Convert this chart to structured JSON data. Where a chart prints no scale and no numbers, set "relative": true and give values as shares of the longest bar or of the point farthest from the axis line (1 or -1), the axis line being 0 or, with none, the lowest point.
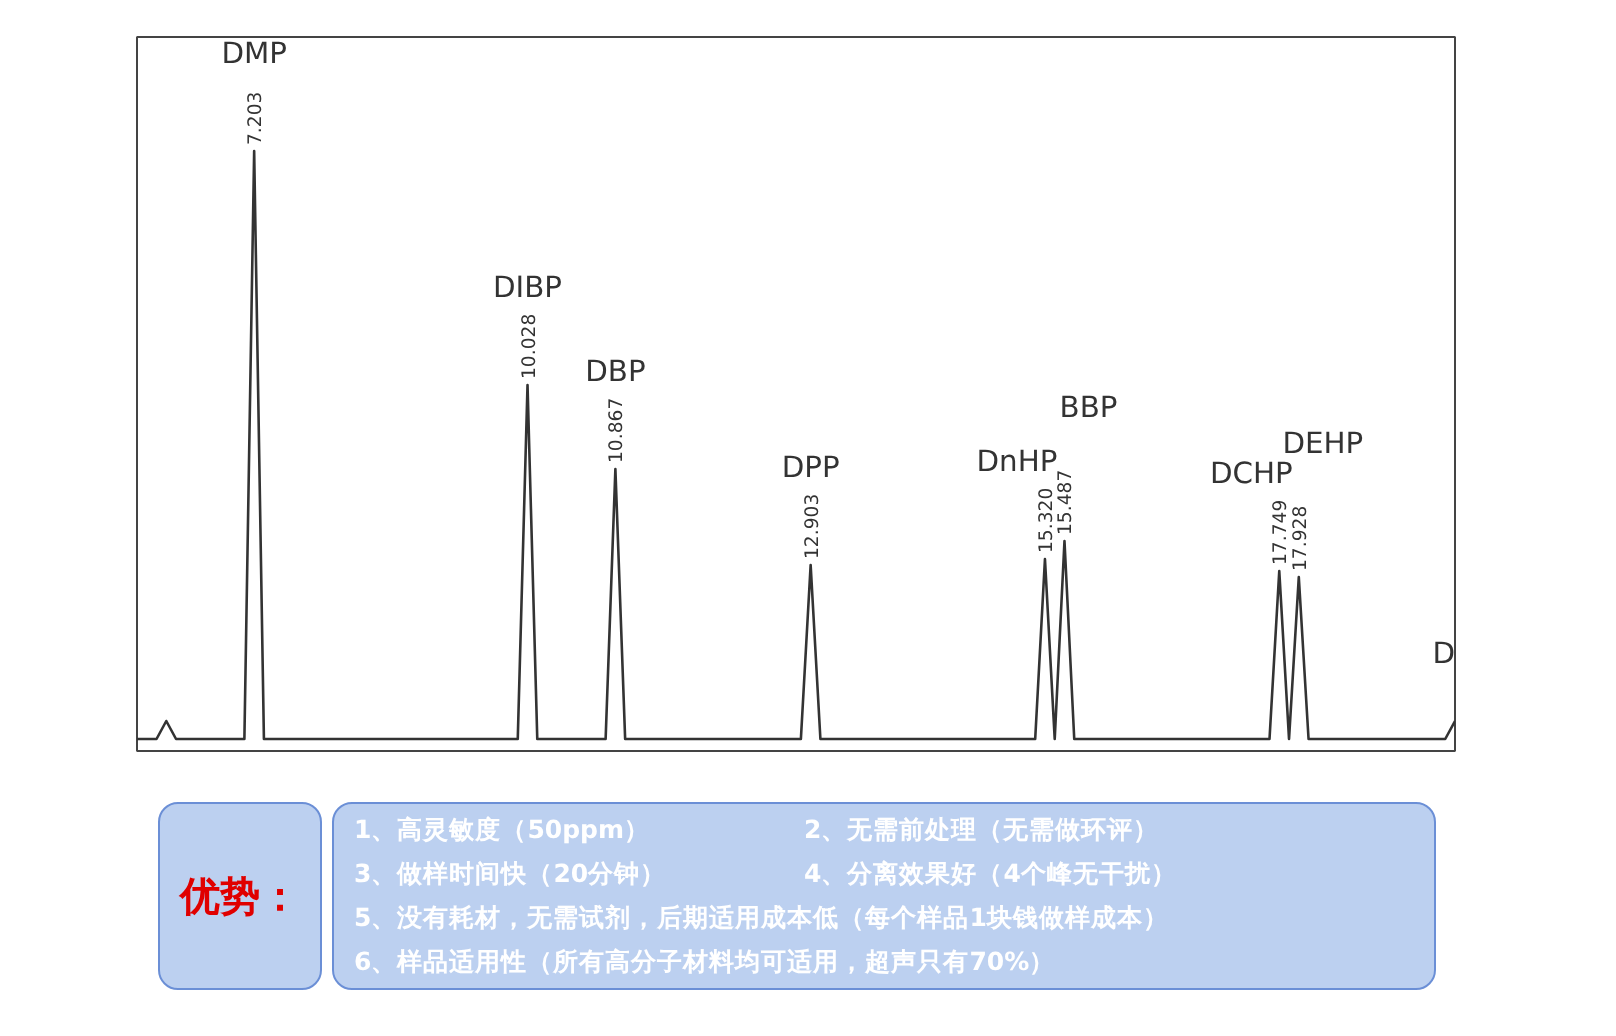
{
  "chart_data": {
    "type": "line",
    "relative": true,
    "grid": false,
    "marker": "none",
    "line_style": "solid",
    "categories": [
      null,
      null,
      null,
      null,
      null,
      null,
      null,
      null,
      null,
      null,
      null,
      null,
      null,
      null,
      null,
      null,
      null,
      null,
      null,
      null,
      null,
      null,
      null,
      null,
      null,
      null,
      null,
      null,
      null,
      null,
      null,
      null,
      null,
      null,
      null,
      null,
      null,
      null,
      null,
      null,
      null,
      null,
      null,
      null,
      null,
      null,
      null,
      null,
      null,
      null,
      null,
      null,
      null,
      null,
      null,
      null,
      null,
      null,
      null,
      null,
      null,
      null,
      null,
      null,
      null,
      null,
      null,
      null,
      null,
      null,
      null,
      null,
      null,
      null,
      null,
      null,
      null,
      null,
      null,
      null,
      null,
      null,
      null,
      null,
      null,
      null,
      null,
      null,
      null,
      null,
      null,
      null,
      null,
      null,
      null,
      null,
      null,
      null,
      null,
      null,
      null,
      null,
      null,
      null,
      null,
      null,
      null,
      null,
      null,
      null,
      null,
      null,
      null,
      null,
      null,
      null,
      null,
      null,
      null,
      null,
      null,
      null,
      null,
      null,
      null,
      null,
      null,
      null,
      null,
      null,
      null,
      null,
      null,
      null,
      null,
      null
    ],
    "series": [
      {
        "color": "#333333",
        "values": [
          0.02,
          0.02,
          0.02,
          0.05,
          0.02,
          0.02,
          0.02,
          0.02,
          0.02,
          0.02,
          0.02,
          0.02,
          1.0,
          0.02,
          0.02,
          0.02,
          0.02,
          0.02,
          0.02,
          0.02,
          0.02,
          0.02,
          0.02,
          0.02,
          0.02,
          0.02,
          0.02,
          0.02,
          0.02,
          0.02,
          0.02,
          0.02,
          0.02,
          0.02,
          0.02,
          0.02,
          0.02,
          0.02,
          0.02,
          0.02,
          0.61,
          0.02,
          0.02,
          0.02,
          0.02,
          0.02,
          0.02,
          0.02,
          0.02,
          0.47,
          0.02,
          0.02,
          0.02,
          0.02,
          0.02,
          0.02,
          0.02,
          0.02,
          0.02,
          0.02,
          0.02,
          0.02,
          0.02,
          0.02,
          0.02,
          0.02,
          0.02,
          0.02,
          0.02,
          0.31,
          0.02,
          0.02,
          0.02,
          0.02,
          0.02,
          0.02,
          0.02,
          0.02,
          0.02,
          0.02,
          0.02,
          0.02,
          0.02,
          0.02,
          0.02,
          0.02,
          0.02,
          0.02,
          0.02,
          0.02,
          0.02,
          0.02,
          0.02,
          0.32,
          0.02,
          0.35,
          0.02,
          0.02,
          0.02,
          0.02,
          0.02,
          0.02,
          0.02,
          0.02,
          0.02,
          0.02,
          0.02,
          0.02,
          0.02,
          0.02,
          0.02,
          0.02,
          0.02,
          0.02,
          0.02,
          0.02,
          0.02,
          0.3,
          0.02,
          0.29,
          0.02,
          0.02,
          0.02,
          0.02,
          0.02,
          0.02,
          0.02,
          0.02,
          0.02,
          0.02,
          0.02,
          0.02,
          0.02,
          0.02,
          0.02,
          0.05
        ]
      }
    ],
    "annotations": [
      "DMP",
      "DIBP",
      "DBP",
      "DPP",
      "DnHP",
      "BBP",
      "DCHP",
      "DEHP",
      "D",
      "7.203",
      "10.028",
      "10.867",
      "12.903",
      "15.320",
      "15.487",
      "17.749",
      "17.928",
      "优势：",
      "1、高灵敏度（50ppm）",
      "2、无需前处理（无需做环评）",
      "3、做样时间快（20分钟）",
      "4、分离效果好（4个峰无干扰）",
      "5、没有耗材，无需试剂，后期适用成本低（每个样品1块钱做样成本）",
      "6、样品适用性（所有高分子材料均可适用，超声只有70%）"
    ]
  }
}
